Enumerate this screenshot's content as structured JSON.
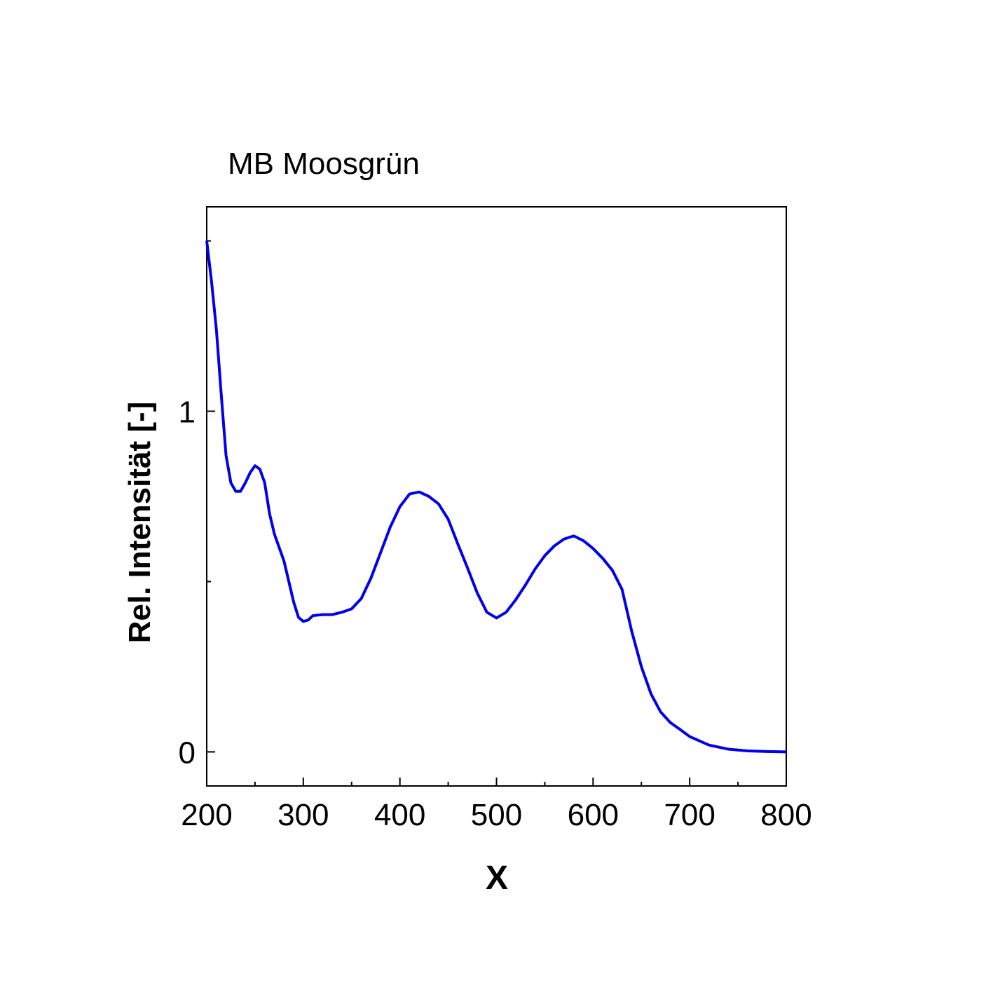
{
  "chart_data": {
    "type": "line",
    "title": "MB Moosgrün",
    "x_label": "X",
    "y_label": "Rel. Intensität [-]",
    "x": [
      200,
      205,
      210,
      215,
      220,
      225,
      230,
      235,
      240,
      245,
      250,
      255,
      260,
      265,
      270,
      280,
      290,
      295,
      300,
      305,
      310,
      320,
      330,
      340,
      350,
      360,
      370,
      380,
      390,
      400,
      410,
      420,
      430,
      440,
      450,
      460,
      470,
      480,
      490,
      500,
      510,
      520,
      530,
      540,
      550,
      560,
      570,
      580,
      590,
      600,
      610,
      620,
      630,
      640,
      650,
      660,
      670,
      680,
      690,
      700,
      720,
      740,
      760,
      780,
      800
    ],
    "series": [
      {
        "name": "MB Moosgrün",
        "color": "#0000ee",
        "values": [
          1.5,
          1.38,
          1.24,
          1.05,
          0.87,
          0.79,
          0.765,
          0.765,
          0.79,
          0.82,
          0.84,
          0.83,
          0.79,
          0.7,
          0.64,
          0.56,
          0.44,
          0.395,
          0.383,
          0.387,
          0.4,
          0.403,
          0.403,
          0.41,
          0.42,
          0.45,
          0.51,
          0.585,
          0.66,
          0.72,
          0.757,
          0.763,
          0.75,
          0.728,
          0.683,
          0.61,
          0.54,
          0.467,
          0.41,
          0.393,
          0.41,
          0.447,
          0.49,
          0.537,
          0.576,
          0.605,
          0.625,
          0.634,
          0.62,
          0.597,
          0.568,
          0.533,
          0.477,
          0.354,
          0.25,
          0.17,
          0.117,
          0.086,
          0.066,
          0.045,
          0.02,
          0.008,
          0.003,
          0.001,
          0
        ]
      }
    ],
    "xlim": [
      200,
      800
    ],
    "xticks": [
      200,
      300,
      400,
      500,
      600,
      700,
      800
    ],
    "xminor": [
      250,
      350,
      450,
      550,
      650,
      750
    ],
    "ylim": [
      -0.1,
      1.6
    ],
    "yticks": [
      0,
      1
    ],
    "yminor": [
      0.5,
      1.5
    ],
    "grid": false
  }
}
